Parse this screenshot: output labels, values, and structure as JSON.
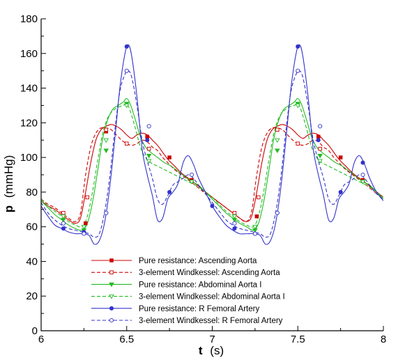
{
  "chart_data": {
    "type": "line",
    "xlabel_symbol": "t",
    "xlabel_unit": "(s)",
    "ylabel_symbol": "p",
    "ylabel_unit": "(mmHg)",
    "xlim": [
      6,
      8
    ],
    "ylim": [
      0,
      180
    ],
    "xticks": [
      6,
      6.5,
      7,
      7.5,
      8
    ],
    "xtick_labels": [
      "6",
      "6.5",
      "7",
      "7.5",
      "8"
    ],
    "yticks": [
      0,
      20,
      40,
      60,
      80,
      100,
      120,
      140,
      160,
      180
    ],
    "ytick_labels": [
      "0",
      "20",
      "40",
      "60",
      "80",
      "100",
      "120",
      "140",
      "160",
      "180"
    ],
    "grid": false,
    "legend_position": "bottom-left",
    "series": [
      {
        "name": "Pure resistance: Ascending Aorta",
        "color": "#cc0000",
        "dash": "solid",
        "marker": "filled-square",
        "x": [
          6.0,
          6.04,
          6.08,
          6.12,
          6.16,
          6.2,
          6.23,
          6.26,
          6.29,
          6.32,
          6.35,
          6.38,
          6.41,
          6.44,
          6.47,
          6.5,
          6.53,
          6.56,
          6.59,
          6.62,
          6.65,
          6.68,
          6.71,
          6.74,
          6.78,
          6.82,
          6.86,
          6.9,
          6.95,
          7.0,
          7.04,
          7.08,
          7.12,
          7.16,
          7.2,
          7.23,
          7.26,
          7.29,
          7.32,
          7.35,
          7.38,
          7.41,
          7.44,
          7.47,
          7.5,
          7.53,
          7.56,
          7.59,
          7.62,
          7.65,
          7.68,
          7.71,
          7.74,
          7.78,
          7.82,
          7.86,
          7.9,
          7.95,
          8.0
        ],
        "y": [
          75,
          72,
          70,
          67,
          64,
          62,
          65,
          80,
          97,
          110,
          116,
          118,
          119,
          118,
          116,
          113,
          111,
          113,
          114,
          113,
          110,
          107,
          103,
          99,
          95,
          91,
          88,
          85,
          81,
          77,
          74,
          71,
          68,
          65,
          63,
          66,
          80,
          97,
          110,
          116,
          118,
          119,
          118,
          116,
          113,
          111,
          113,
          114,
          113,
          110,
          107,
          103,
          99,
          95,
          91,
          88,
          85,
          81,
          77
        ]
      },
      {
        "name": "3-element Windkessel: Ascending Aorta",
        "color": "#cc0000",
        "dash": "dashed",
        "marker": "open-square",
        "x": [
          6.0,
          6.04,
          6.08,
          6.12,
          6.16,
          6.2,
          6.23,
          6.26,
          6.29,
          6.32,
          6.35,
          6.38,
          6.41,
          6.44,
          6.47,
          6.5,
          6.53,
          6.56,
          6.59,
          6.62,
          6.65,
          6.68,
          6.71,
          6.74,
          6.78,
          6.82,
          6.86,
          6.9,
          6.95,
          7.0,
          7.04,
          7.08,
          7.12,
          7.16,
          7.2,
          7.23,
          7.26,
          7.29,
          7.32,
          7.35,
          7.38,
          7.41,
          7.44,
          7.47,
          7.5,
          7.53,
          7.56,
          7.59,
          7.62,
          7.65,
          7.68,
          7.71,
          7.74,
          7.78,
          7.82,
          7.86,
          7.9,
          7.95,
          8.0
        ],
        "y": [
          76,
          73,
          71,
          68,
          65,
          63,
          68,
          90,
          106,
          114,
          117,
          117,
          116,
          113,
          110,
          108,
          107,
          108,
          110,
          109,
          106,
          104,
          100,
          97,
          93,
          90,
          87,
          84,
          80,
          77,
          74,
          71,
          68,
          65,
          63,
          69,
          90,
          106,
          114,
          117,
          117,
          116,
          113,
          110,
          108,
          107,
          108,
          110,
          109,
          106,
          104,
          100,
          97,
          93,
          90,
          87,
          84,
          80,
          77
        ]
      },
      {
        "name": "Pure resistance: Abdominal Aorta I",
        "color": "#22bb22",
        "dash": "solid",
        "marker": "filled-triangle-down",
        "x": [
          6.0,
          6.04,
          6.08,
          6.12,
          6.16,
          6.2,
          6.24,
          6.27,
          6.3,
          6.33,
          6.36,
          6.39,
          6.42,
          6.45,
          6.48,
          6.5,
          6.52,
          6.55,
          6.58,
          6.61,
          6.64,
          6.68,
          6.72,
          6.76,
          6.8,
          6.84,
          6.88,
          6.92,
          6.96,
          7.0,
          7.04,
          7.08,
          7.12,
          7.16,
          7.2,
          7.24,
          7.27,
          7.3,
          7.33,
          7.36,
          7.39,
          7.42,
          7.45,
          7.48,
          7.5,
          7.52,
          7.55,
          7.58,
          7.61,
          7.64,
          7.68,
          7.72,
          7.76,
          7.8,
          7.84,
          7.88,
          7.92,
          7.96,
          8.0
        ],
        "y": [
          75,
          71,
          67,
          64,
          61,
          59,
          58,
          62,
          74,
          92,
          111,
          122,
          128,
          130,
          132,
          134,
          131,
          122,
          112,
          106,
          103,
          100,
          97,
          95,
          92,
          89,
          86,
          84,
          80,
          76,
          72,
          68,
          65,
          62,
          60,
          58,
          62,
          74,
          92,
          111,
          122,
          128,
          130,
          132,
          134,
          131,
          122,
          112,
          106,
          103,
          100,
          97,
          95,
          92,
          89,
          86,
          84,
          80,
          76
        ]
      },
      {
        "name": "3-element Windkessel: Abdominal Aorta I",
        "color": "#22bb22",
        "dash": "dashed",
        "marker": "open-triangle-down",
        "x": [
          6.0,
          6.04,
          6.08,
          6.12,
          6.16,
          6.2,
          6.24,
          6.27,
          6.3,
          6.33,
          6.36,
          6.39,
          6.42,
          6.45,
          6.48,
          6.5,
          6.52,
          6.55,
          6.58,
          6.61,
          6.64,
          6.68,
          6.72,
          6.76,
          6.8,
          6.84,
          6.88,
          6.92,
          6.96,
          7.0,
          7.04,
          7.08,
          7.12,
          7.16,
          7.2,
          7.24,
          7.27,
          7.3,
          7.33,
          7.36,
          7.39,
          7.42,
          7.45,
          7.48,
          7.5,
          7.52,
          7.55,
          7.58,
          7.61,
          7.64,
          7.68,
          7.72,
          7.76,
          7.8,
          7.84,
          7.88,
          7.92,
          7.96,
          8.0
        ],
        "y": [
          76,
          72,
          69,
          66,
          63,
          61,
          60,
          66,
          80,
          98,
          114,
          123,
          127,
          129,
          130,
          131,
          127,
          117,
          106,
          100,
          97,
          95,
          93,
          91,
          89,
          87,
          85,
          83,
          80,
          77,
          73,
          69,
          66,
          63,
          61,
          60,
          66,
          80,
          98,
          114,
          123,
          127,
          129,
          130,
          131,
          127,
          117,
          106,
          100,
          97,
          95,
          93,
          91,
          89,
          87,
          85,
          83,
          80,
          77
        ]
      },
      {
        "name": "Pure resistance: R Femoral Artery",
        "color": "#3333cc",
        "dash": "solid",
        "marker": "filled-circle",
        "x": [
          6.0,
          6.04,
          6.08,
          6.12,
          6.16,
          6.2,
          6.24,
          6.28,
          6.31,
          6.34,
          6.37,
          6.4,
          6.43,
          6.46,
          6.49,
          6.51,
          6.53,
          6.56,
          6.59,
          6.62,
          6.65,
          6.68,
          6.71,
          6.74,
          6.77,
          6.8,
          6.83,
          6.86,
          6.89,
          6.92,
          6.96,
          7.0,
          7.04,
          7.08,
          7.12,
          7.16,
          7.2,
          7.24,
          7.28,
          7.31,
          7.34,
          7.37,
          7.4,
          7.43,
          7.46,
          7.49,
          7.51,
          7.53,
          7.56,
          7.59,
          7.62,
          7.65,
          7.68,
          7.71,
          7.74,
          7.77,
          7.8,
          7.83,
          7.86,
          7.89,
          7.92,
          7.96,
          8.0
        ],
        "y": [
          72,
          66,
          61,
          59,
          57,
          56,
          56,
          55,
          50,
          52,
          62,
          82,
          110,
          140,
          160,
          165,
          158,
          135,
          105,
          90,
          78,
          64,
          65,
          76,
          80,
          85,
          97,
          101,
          96,
          88,
          80,
          72,
          66,
          61,
          58,
          56,
          56,
          56,
          55,
          50,
          52,
          62,
          82,
          110,
          140,
          160,
          165,
          158,
          135,
          105,
          90,
          78,
          64,
          65,
          76,
          80,
          85,
          97,
          101,
          96,
          88,
          80,
          75
        ]
      },
      {
        "name": "3-element Windkessel: R Femoral Artery",
        "color": "#3333cc",
        "dash": "dashed",
        "marker": "open-circle",
        "x": [
          6.0,
          6.04,
          6.08,
          6.12,
          6.16,
          6.2,
          6.24,
          6.28,
          6.31,
          6.34,
          6.37,
          6.4,
          6.43,
          6.46,
          6.49,
          6.51,
          6.53,
          6.56,
          6.59,
          6.62,
          6.65,
          6.68,
          6.71,
          6.74,
          6.77,
          6.8,
          6.83,
          6.86,
          6.89,
          6.92,
          6.96,
          7.0,
          7.04,
          7.08,
          7.12,
          7.16,
          7.2,
          7.24,
          7.28,
          7.31,
          7.34,
          7.37,
          7.4,
          7.43,
          7.46,
          7.49,
          7.51,
          7.53,
          7.56,
          7.59,
          7.62,
          7.65,
          7.68,
          7.71,
          7.74,
          7.77,
          7.8,
          7.83,
          7.86,
          7.89,
          7.92,
          7.96,
          8.0
        ],
        "y": [
          74,
          68,
          64,
          61,
          59,
          58,
          57,
          56,
          54,
          56,
          68,
          88,
          115,
          138,
          148,
          150,
          146,
          130,
          110,
          98,
          88,
          76,
          73,
          78,
          84,
          86,
          88,
          90,
          88,
          84,
          79,
          74,
          69,
          64,
          61,
          59,
          58,
          57,
          56,
          54,
          56,
          68,
          88,
          115,
          138,
          148,
          150,
          146,
          130,
          110,
          98,
          88,
          76,
          73,
          78,
          84,
          86,
          88,
          90,
          88,
          84,
          79,
          76
        ]
      }
    ],
    "markers": [
      [
        [
          6.26,
          62
        ],
        [
          6.38,
          115
        ],
        [
          6.62,
          112
        ],
        [
          6.75,
          100
        ],
        [
          6.88,
          87
        ],
        [
          7.26,
          66
        ],
        [
          7.38,
          116
        ],
        [
          7.62,
          112
        ],
        [
          7.75,
          100
        ],
        [
          7.88,
          87
        ]
      ],
      [
        [
          6.13,
          68
        ],
        [
          6.27,
          77
        ],
        [
          6.38,
          116
        ],
        [
          6.5,
          108
        ],
        [
          6.63,
          105
        ],
        [
          7.13,
          68
        ],
        [
          7.27,
          77
        ],
        [
          7.38,
          116
        ],
        [
          7.5,
          108
        ],
        [
          7.63,
          105
        ]
      ],
      [
        [
          6.13,
          64
        ],
        [
          6.25,
          58
        ],
        [
          6.38,
          104
        ],
        [
          6.5,
          131
        ],
        [
          6.63,
          101
        ],
        [
          7.13,
          64
        ],
        [
          7.25,
          58
        ],
        [
          7.38,
          104
        ],
        [
          7.5,
          131
        ],
        [
          7.63,
          101
        ],
        [
          7.88,
          86
        ]
      ],
      [
        [
          6.13,
          66
        ],
        [
          6.25,
          60
        ],
        [
          6.38,
          110
        ],
        [
          6.5,
          130
        ],
        [
          6.63,
          98
        ],
        [
          6.88,
          86
        ],
        [
          7.13,
          66
        ],
        [
          7.25,
          60
        ],
        [
          7.38,
          110
        ],
        [
          7.5,
          130
        ],
        [
          7.63,
          98
        ],
        [
          7.88,
          86
        ]
      ],
      [
        [
          6.13,
          59
        ],
        [
          6.25,
          57
        ],
        [
          6.38,
          68
        ],
        [
          6.5,
          164
        ],
        [
          6.62,
          110
        ],
        [
          6.75,
          80
        ],
        [
          7.0,
          72
        ],
        [
          7.13,
          59
        ],
        [
          7.25,
          56
        ],
        [
          7.38,
          68
        ],
        [
          7.5,
          164
        ],
        [
          7.62,
          110
        ],
        [
          7.75,
          80
        ],
        [
          7.88,
          97
        ]
      ],
      [
        [
          6.13,
          62
        ],
        [
          6.25,
          56
        ],
        [
          6.38,
          68
        ],
        [
          6.5,
          150
        ],
        [
          6.63,
          118
        ],
        [
          6.88,
          90
        ],
        [
          7.13,
          62
        ],
        [
          7.25,
          56
        ],
        [
          7.38,
          68
        ],
        [
          7.5,
          150
        ],
        [
          7.63,
          118
        ],
        [
          7.88,
          90
        ]
      ]
    ]
  }
}
